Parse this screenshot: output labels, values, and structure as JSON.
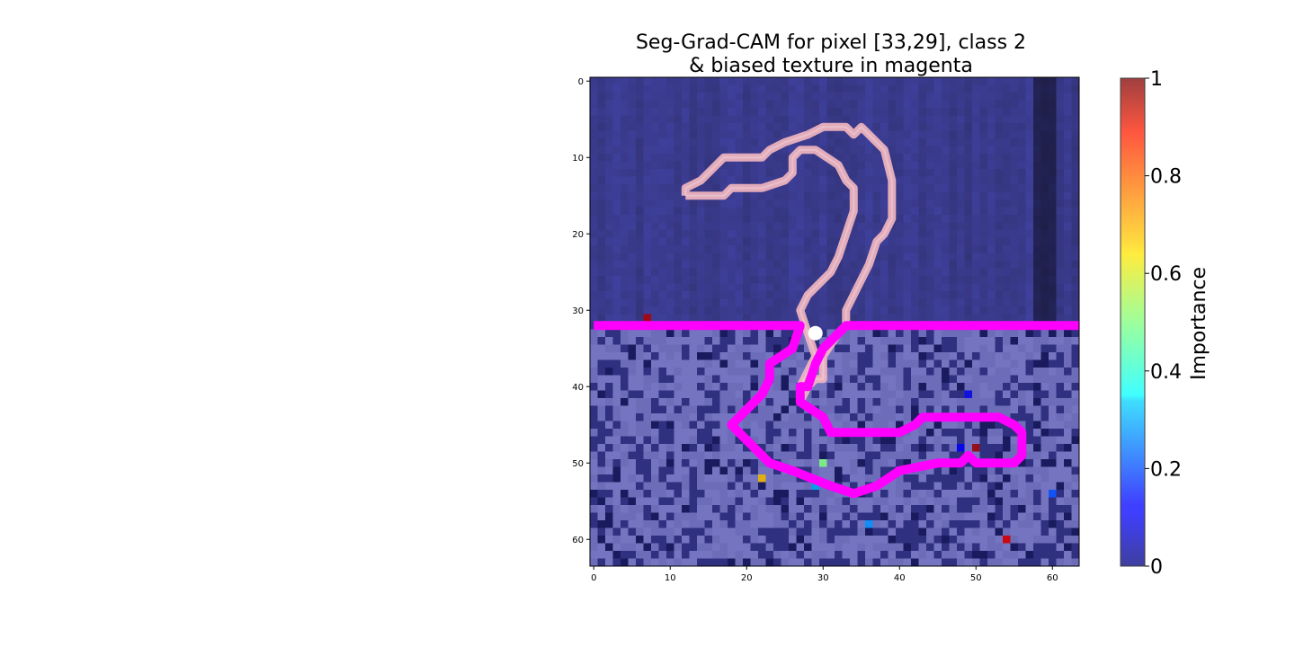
{
  "chart_data": {
    "type": "heatmap",
    "title_lines": [
      "Seg-Grad-CAM for pixel [33,29], class 2",
      "& biased texture in magenta"
    ],
    "grid_size": [
      64,
      64
    ],
    "extent": {
      "x": [
        -0.5,
        63.5
      ],
      "y": [
        63.5,
        -0.5
      ]
    },
    "x_ticks": [
      0,
      10,
      20,
      30,
      40,
      50,
      60
    ],
    "y_ticks": [
      0,
      10,
      20,
      30,
      40,
      50,
      60
    ],
    "selected_pixel": {
      "row": 33,
      "col": 29,
      "class": 2
    },
    "biased_texture_boundary_row": 32,
    "importance_hotspots": [
      {
        "row": 31,
        "col": 7,
        "value": 0.95
      },
      {
        "row": 50,
        "col": 30,
        "value": 0.5
      },
      {
        "row": 52,
        "col": 22,
        "value": 0.68
      },
      {
        "row": 53,
        "col": 29,
        "value": 0.3
      },
      {
        "row": 58,
        "col": 36,
        "value": 0.27
      },
      {
        "row": 60,
        "col": 54,
        "value": 0.9
      },
      {
        "row": 54,
        "col": 60,
        "value": 0.2
      },
      {
        "row": 41,
        "col": 49,
        "value": 0.1
      },
      {
        "row": 48,
        "col": 48,
        "value": 0.12
      },
      {
        "row": 48,
        "col": 50,
        "value": 0.97
      }
    ],
    "class_contour_pink": [
      [
        15,
        12
      ],
      [
        14,
        12
      ],
      [
        13,
        14
      ],
      [
        12,
        15
      ],
      [
        11,
        16
      ],
      [
        10,
        17
      ],
      [
        10,
        22
      ],
      [
        9,
        23
      ],
      [
        8,
        25
      ],
      [
        7,
        28
      ],
      [
        6,
        30
      ],
      [
        6,
        33
      ],
      [
        7,
        34
      ],
      [
        6,
        35
      ],
      [
        7,
        36
      ],
      [
        8,
        37
      ],
      [
        9,
        38
      ],
      [
        13,
        39
      ],
      [
        18,
        39
      ],
      [
        20,
        38
      ],
      [
        21,
        37
      ],
      [
        24,
        36
      ],
      [
        26,
        35
      ],
      [
        28,
        34
      ],
      [
        30,
        33
      ],
      [
        32,
        33
      ],
      [
        33,
        32
      ],
      [
        36,
        30
      ],
      [
        39,
        30
      ],
      [
        39,
        29
      ],
      [
        40,
        28
      ],
      [
        42,
        27
      ],
      [
        40,
        27
      ],
      [
        38,
        28
      ],
      [
        36,
        29
      ],
      [
        33,
        28
      ],
      [
        30,
        27
      ],
      [
        28,
        28
      ],
      [
        25,
        31
      ],
      [
        23,
        32
      ],
      [
        20,
        33
      ],
      [
        17,
        34
      ],
      [
        14,
        34
      ],
      [
        13,
        33
      ],
      [
        11,
        32
      ],
      [
        9,
        29
      ],
      [
        9,
        27
      ],
      [
        10,
        26
      ],
      [
        12,
        26
      ],
      [
        13,
        25
      ],
      [
        14,
        22
      ],
      [
        14,
        18
      ],
      [
        15,
        17
      ],
      [
        15,
        16
      ],
      [
        15,
        12
      ]
    ],
    "biased_contour_magenta": [
      [
        32,
        0
      ],
      [
        32,
        27
      ],
      [
        35,
        26
      ],
      [
        37,
        23
      ],
      [
        39,
        23
      ],
      [
        41,
        22
      ],
      [
        45,
        18
      ],
      [
        48,
        21
      ],
      [
        50,
        23
      ],
      [
        51,
        26
      ],
      [
        53,
        31
      ],
      [
        54,
        34
      ],
      [
        53,
        37
      ],
      [
        51,
        40
      ],
      [
        50,
        45
      ],
      [
        50,
        48
      ],
      [
        49,
        49
      ],
      [
        50,
        50
      ],
      [
        50,
        55
      ],
      [
        49,
        56
      ],
      [
        46,
        56
      ],
      [
        45,
        55
      ],
      [
        44,
        53
      ],
      [
        44,
        43
      ],
      [
        45,
        42
      ],
      [
        46,
        40
      ],
      [
        46,
        31
      ],
      [
        44,
        30
      ],
      [
        42,
        27
      ],
      [
        40,
        27
      ],
      [
        40,
        28
      ],
      [
        37,
        29
      ],
      [
        35,
        30
      ],
      [
        33,
        32
      ],
      [
        32,
        33
      ],
      [
        32,
        64
      ]
    ],
    "colorbar": {
      "label": "Importance",
      "range": [
        0,
        1
      ],
      "ticks": [
        0,
        0.2,
        0.4,
        0.6,
        0.8,
        1
      ],
      "tick_labels": [
        "0",
        "0.2",
        "0.4",
        "0.6",
        "0.8",
        "1"
      ],
      "colormap": "jet"
    },
    "colors": {
      "background_low": "#3e3f93",
      "background_high": "#6b6bb8",
      "class_contour": "#f5b8c0",
      "biased_contour": "#ff00ff",
      "selected_pixel_marker": "#ffffff"
    }
  }
}
